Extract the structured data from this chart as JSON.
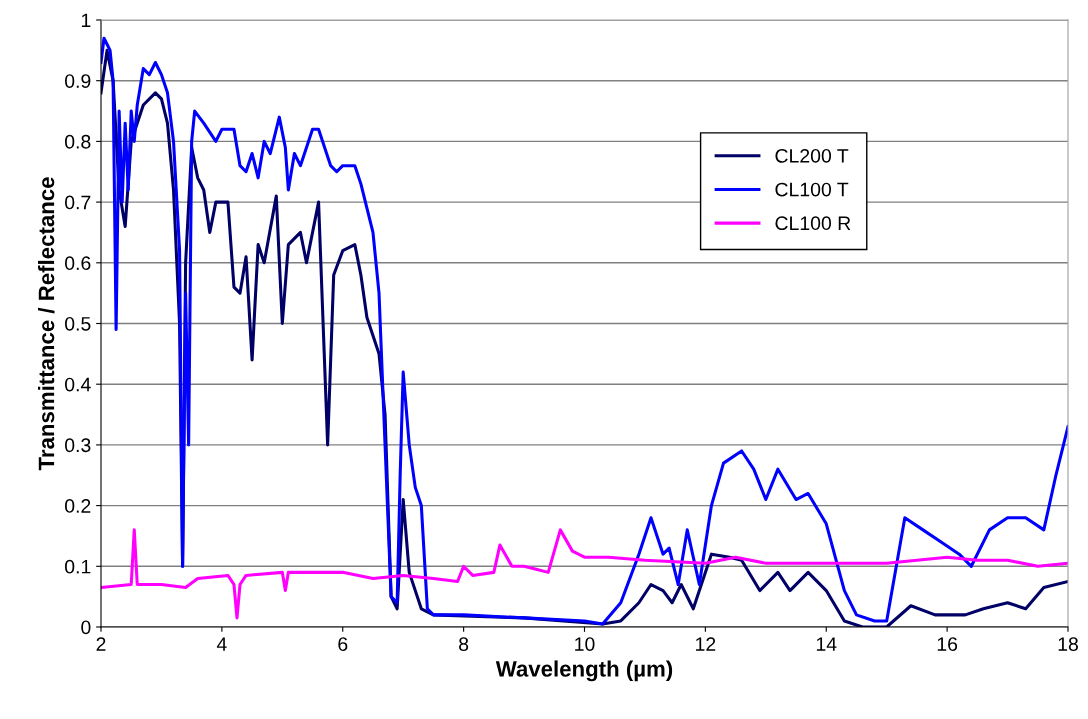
{
  "chart_data": {
    "type": "line",
    "xlabel": "Wavelength (µm)",
    "ylabel": "Transmittance / Reflectance",
    "xlim": [
      2,
      18
    ],
    "xticks": [
      2,
      4,
      6,
      8,
      10,
      12,
      14,
      16,
      18
    ],
    "ylim": [
      0,
      1
    ],
    "yticks": [
      0,
      0.1,
      0.2,
      0.3,
      0.4,
      0.5,
      0.6,
      0.7,
      0.8,
      0.9,
      1
    ],
    "grid": "y",
    "legend": "right",
    "marker": "none",
    "line_style": "solid",
    "series": [
      {
        "name": "CL200 T",
        "color": "#000066",
        "x": [
          2.0,
          2.1,
          2.2,
          2.3,
          2.4,
          2.5,
          2.6,
          2.7,
          2.9,
          3.0,
          3.1,
          3.2,
          3.3,
          3.35,
          3.4,
          3.5,
          3.6,
          3.7,
          3.8,
          3.9,
          4.1,
          4.2,
          4.3,
          4.4,
          4.5,
          4.6,
          4.7,
          4.9,
          5.0,
          5.1,
          5.3,
          5.4,
          5.6,
          5.75,
          5.85,
          6.0,
          6.2,
          6.3,
          6.4,
          6.6,
          6.7,
          6.8,
          6.9,
          7.0,
          7.1,
          7.3,
          7.5,
          9,
          10.3,
          10.6,
          10.9,
          11.1,
          11.3,
          11.45,
          11.6,
          11.8,
          12.1,
          12.4,
          12.6,
          12.9,
          13.2,
          13.4,
          13.7,
          14.0,
          14.3,
          14.6,
          15.0,
          15.4,
          15.8,
          16.3,
          16.6,
          17.0,
          17.3,
          17.6,
          18.0
        ],
        "values": [
          0.88,
          0.95,
          0.9,
          0.72,
          0.66,
          0.8,
          0.83,
          0.86,
          0.88,
          0.87,
          0.83,
          0.72,
          0.5,
          0.1,
          0.6,
          0.79,
          0.74,
          0.72,
          0.65,
          0.7,
          0.7,
          0.56,
          0.55,
          0.61,
          0.44,
          0.63,
          0.6,
          0.71,
          0.5,
          0.63,
          0.65,
          0.6,
          0.7,
          0.3,
          0.58,
          0.62,
          0.63,
          0.58,
          0.51,
          0.45,
          0.35,
          0.05,
          0.03,
          0.21,
          0.09,
          0.03,
          0.02,
          0.015,
          0.005,
          0.01,
          0.04,
          0.07,
          0.06,
          0.04,
          0.07,
          0.03,
          0.12,
          0.115,
          0.11,
          0.06,
          0.09,
          0.06,
          0.09,
          0.06,
          0.01,
          0.0,
          0.0,
          0.035,
          0.02,
          0.02,
          0.03,
          0.04,
          0.03,
          0.065,
          0.075
        ]
      },
      {
        "name": "CL100 T",
        "color": "#0000ff",
        "x": [
          2.0,
          2.05,
          2.1,
          2.15,
          2.2,
          2.25,
          2.3,
          2.35,
          2.4,
          2.45,
          2.5,
          2.55,
          2.6,
          2.7,
          2.8,
          2.9,
          3.0,
          3.1,
          3.2,
          3.3,
          3.35,
          3.4,
          3.45,
          3.5,
          3.55,
          3.7,
          3.9,
          4.0,
          4.2,
          4.3,
          4.4,
          4.5,
          4.6,
          4.7,
          4.8,
          4.95,
          5.05,
          5.1,
          5.2,
          5.3,
          5.4,
          5.5,
          5.6,
          5.7,
          5.8,
          5.9,
          6.0,
          6.2,
          6.3,
          6.4,
          6.5,
          6.6,
          6.7,
          6.8,
          6.9,
          6.95,
          7.0,
          7.1,
          7.2,
          7.3,
          7.4,
          7.5,
          8,
          9,
          10,
          10.3,
          10.6,
          10.9,
          11.1,
          11.3,
          11.4,
          11.55,
          11.7,
          11.9,
          12.1,
          12.3,
          12.6,
          12.8,
          13.0,
          13.2,
          13.5,
          13.7,
          14.0,
          14.3,
          14.5,
          14.8,
          15.0,
          15.3,
          15.6,
          15.9,
          16.2,
          16.4,
          16.7,
          17.0,
          17.3,
          17.6,
          17.8,
          18.0
        ],
        "values": [
          0.93,
          0.97,
          0.96,
          0.95,
          0.9,
          0.49,
          0.85,
          0.7,
          0.83,
          0.72,
          0.85,
          0.8,
          0.86,
          0.92,
          0.91,
          0.93,
          0.91,
          0.88,
          0.8,
          0.62,
          0.1,
          0.55,
          0.3,
          0.8,
          0.85,
          0.83,
          0.8,
          0.82,
          0.82,
          0.76,
          0.75,
          0.78,
          0.74,
          0.8,
          0.78,
          0.84,
          0.79,
          0.72,
          0.78,
          0.76,
          0.79,
          0.82,
          0.82,
          0.79,
          0.76,
          0.75,
          0.76,
          0.76,
          0.73,
          0.69,
          0.65,
          0.55,
          0.3,
          0.05,
          0.04,
          0.25,
          0.42,
          0.3,
          0.23,
          0.2,
          0.03,
          0.02,
          0.02,
          0.015,
          0.01,
          0.005,
          0.04,
          0.12,
          0.18,
          0.12,
          0.13,
          0.07,
          0.16,
          0.07,
          0.2,
          0.27,
          0.29,
          0.26,
          0.21,
          0.26,
          0.21,
          0.22,
          0.17,
          0.06,
          0.02,
          0.01,
          0.01,
          0.18,
          0.16,
          0.14,
          0.12,
          0.1,
          0.16,
          0.18,
          0.18,
          0.16,
          0.25,
          0.33
        ]
      },
      {
        "name": "CL100 R",
        "color": "#ff00ff",
        "x": [
          2.0,
          2.5,
          2.55,
          2.6,
          3.0,
          3.4,
          3.6,
          4.1,
          4.2,
          4.25,
          4.3,
          4.4,
          5.0,
          5.05,
          5.1,
          6.0,
          6.5,
          7.0,
          7.5,
          7.9,
          8.0,
          8.15,
          8.5,
          8.6,
          8.8,
          9.0,
          9.2,
          9.4,
          9.6,
          9.8,
          10.0,
          10.4,
          11,
          12,
          12.5,
          13,
          14,
          15,
          15.5,
          16,
          16.5,
          17,
          17.5,
          18
        ],
        "values": [
          0.065,
          0.07,
          0.16,
          0.07,
          0.07,
          0.065,
          0.08,
          0.085,
          0.07,
          0.015,
          0.07,
          0.085,
          0.09,
          0.06,
          0.09,
          0.09,
          0.08,
          0.085,
          0.08,
          0.075,
          0.1,
          0.085,
          0.09,
          0.135,
          0.1,
          0.1,
          0.095,
          0.09,
          0.16,
          0.125,
          0.115,
          0.115,
          0.11,
          0.105,
          0.115,
          0.105,
          0.105,
          0.105,
          0.11,
          0.115,
          0.11,
          0.11,
          0.1,
          0.105
        ]
      }
    ]
  }
}
